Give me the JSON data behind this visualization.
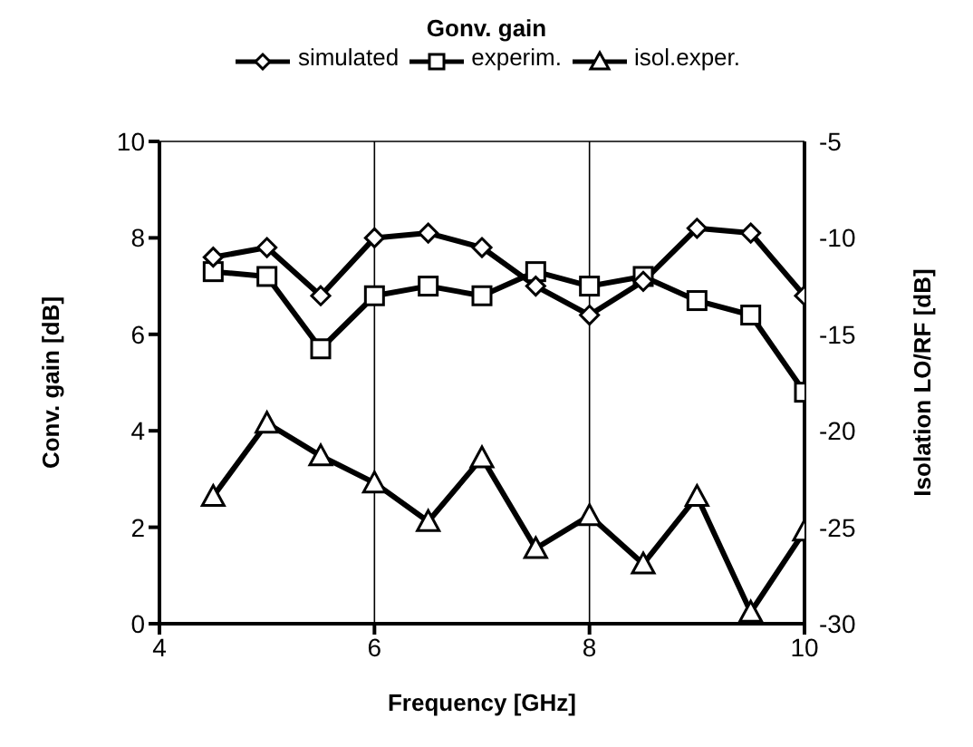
{
  "chart_data": {
    "type": "line",
    "legend_title": "Gonv. gain",
    "xlabel": "Frequency [GHz]",
    "ylabel": "Conv. gain [dB]",
    "y2label": "Isolation LO/RF [dB]",
    "x": [
      4.5,
      5,
      5.5,
      6,
      6.5,
      7,
      7.5,
      8,
      8.5,
      9,
      9.5,
      10
    ],
    "series": [
      {
        "name": "simulated",
        "color": "#000000",
        "marker": "diamond",
        "values": [
          7.6,
          7.8,
          6.8,
          8.0,
          8.1,
          7.8,
          7.0,
          6.4,
          7.1,
          8.2,
          8.1,
          6.8
        ]
      },
      {
        "name": "experim.",
        "color": "#000000",
        "marker": "square",
        "values": [
          7.3,
          7.2,
          5.7,
          6.8,
          7.0,
          6.8,
          7.3,
          7.0,
          7.2,
          6.7,
          6.4,
          4.8
        ]
      },
      {
        "name": "isol.exper.",
        "color": "#000000",
        "marker": "triangle",
        "axis": "y2",
        "values": [
          -23.4,
          -19.6,
          -21.3,
          -22.7,
          -24.7,
          -21.4,
          -26.1,
          -24.4,
          -26.9,
          -23.4,
          -29.4,
          -25.2
        ]
      }
    ],
    "xlim": [
      4,
      10
    ],
    "xticks": [
      4,
      6,
      8,
      10
    ],
    "ylim": [
      0,
      10
    ],
    "yticks": [
      0,
      2,
      4,
      6,
      8,
      10
    ],
    "y2lim": [
      -30,
      -5
    ],
    "y2ticks": [
      -30,
      -25,
      -20,
      -15,
      -10,
      -5
    ],
    "grid": true,
    "legend": "top",
    "line_style": "solid"
  }
}
